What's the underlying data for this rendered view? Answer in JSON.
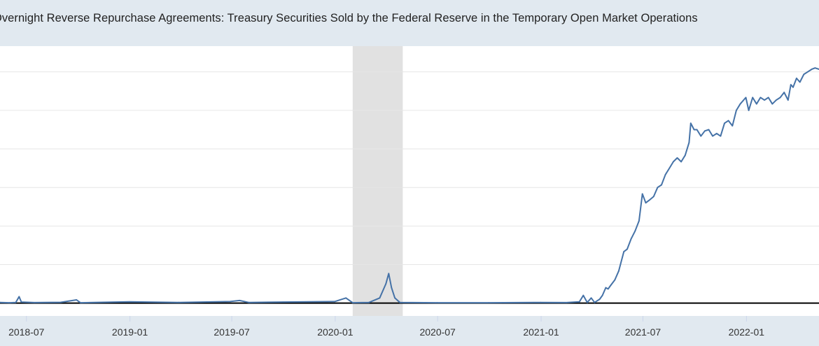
{
  "header": {
    "title": "Overnight Reverse Repurchase Agreements: Treasury Securities Sold by the Federal Reserve in the Temporary Open Market Operations"
  },
  "colors": {
    "series": "#4572a7",
    "recession": "#e1e1e1",
    "header_bg": "#e1e9f0",
    "grid": "#e6e6e6",
    "baseline": "#000000"
  },
  "chart_data": {
    "type": "line",
    "title": "Overnight Reverse Repurchase Agreements: Treasury Securities Sold by the Federal Reserve in the Temporary Open Market Operations",
    "xlabel": "",
    "ylabel": "",
    "grid": true,
    "legend": "none",
    "x_ticks": [
      "2018-07",
      "2019-01",
      "2019-07",
      "2020-01",
      "2020-07",
      "2021-01",
      "2021-07",
      "2022-01"
    ],
    "xlim": [
      "2018-05-15",
      "2022-05-10"
    ],
    "ylim": [
      -100,
      2000
    ],
    "recession_shading": [
      {
        "start": "2020-02-01",
        "end": "2020-04-30"
      }
    ],
    "series": [
      {
        "values": [
          [
            "2018-05-15",
            5
          ],
          [
            "2018-06-01",
            3
          ],
          [
            "2018-06-12",
            5
          ],
          [
            "2018-06-18",
            50
          ],
          [
            "2018-06-22",
            8
          ],
          [
            "2018-07-15",
            4
          ],
          [
            "2018-08-31",
            6
          ],
          [
            "2018-09-28",
            25
          ],
          [
            "2018-10-05",
            3
          ],
          [
            "2018-12-31",
            10
          ],
          [
            "2019-03-29",
            5
          ],
          [
            "2019-06-28",
            12
          ],
          [
            "2019-07-15",
            20
          ],
          [
            "2019-07-31",
            5
          ],
          [
            "2019-09-30",
            8
          ],
          [
            "2019-12-31",
            12
          ],
          [
            "2020-01-20",
            40
          ],
          [
            "2020-02-01",
            3
          ],
          [
            "2020-03-01",
            5
          ],
          [
            "2020-03-20",
            40
          ],
          [
            "2020-03-31",
            150
          ],
          [
            "2020-04-05",
            230
          ],
          [
            "2020-04-10",
            120
          ],
          [
            "2020-04-16",
            40
          ],
          [
            "2020-04-25",
            5
          ],
          [
            "2020-06-30",
            3
          ],
          [
            "2020-09-30",
            3
          ],
          [
            "2020-12-31",
            5
          ],
          [
            "2021-02-15",
            4
          ],
          [
            "2021-03-10",
            10
          ],
          [
            "2021-03-17",
            60
          ],
          [
            "2021-03-24",
            5
          ],
          [
            "2021-03-31",
            40
          ],
          [
            "2021-04-06",
            5
          ],
          [
            "2021-04-15",
            30
          ],
          [
            "2021-04-20",
            60
          ],
          [
            "2021-04-26",
            120
          ],
          [
            "2021-04-30",
            110
          ],
          [
            "2021-05-05",
            140
          ],
          [
            "2021-05-12",
            180
          ],
          [
            "2021-05-19",
            250
          ],
          [
            "2021-05-28",
            400
          ],
          [
            "2021-06-03",
            420
          ],
          [
            "2021-06-10",
            500
          ],
          [
            "2021-06-17",
            560
          ],
          [
            "2021-06-24",
            640
          ],
          [
            "2021-06-30",
            850
          ],
          [
            "2021-07-06",
            780
          ],
          [
            "2021-07-12",
            800
          ],
          [
            "2021-07-20",
            830
          ],
          [
            "2021-07-27",
            900
          ],
          [
            "2021-08-03",
            920
          ],
          [
            "2021-08-10",
            1000
          ],
          [
            "2021-08-17",
            1050
          ],
          [
            "2021-08-24",
            1100
          ],
          [
            "2021-08-31",
            1130
          ],
          [
            "2021-09-07",
            1100
          ],
          [
            "2021-09-14",
            1150
          ],
          [
            "2021-09-21",
            1250
          ],
          [
            "2021-09-24",
            1400
          ],
          [
            "2021-09-30",
            1350
          ],
          [
            "2021-10-05",
            1350
          ],
          [
            "2021-10-12",
            1300
          ],
          [
            "2021-10-19",
            1340
          ],
          [
            "2021-10-26",
            1350
          ],
          [
            "2021-11-02",
            1300
          ],
          [
            "2021-11-09",
            1320
          ],
          [
            "2021-11-16",
            1300
          ],
          [
            "2021-11-23",
            1400
          ],
          [
            "2021-11-30",
            1420
          ],
          [
            "2021-12-07",
            1380
          ],
          [
            "2021-12-14",
            1500
          ],
          [
            "2021-12-21",
            1550
          ],
          [
            "2021-12-31",
            1600
          ],
          [
            "2022-01-05",
            1500
          ],
          [
            "2022-01-12",
            1600
          ],
          [
            "2022-01-19",
            1550
          ],
          [
            "2022-01-26",
            1600
          ],
          [
            "2022-02-02",
            1580
          ],
          [
            "2022-02-09",
            1600
          ],
          [
            "2022-02-16",
            1550
          ],
          [
            "2022-02-23",
            1580
          ],
          [
            "2022-03-02",
            1600
          ],
          [
            "2022-03-09",
            1640
          ],
          [
            "2022-03-16",
            1580
          ],
          [
            "2022-03-21",
            1700
          ],
          [
            "2022-03-25",
            1680
          ],
          [
            "2022-03-31",
            1750
          ],
          [
            "2022-04-06",
            1720
          ],
          [
            "2022-04-13",
            1780
          ],
          [
            "2022-04-20",
            1800
          ],
          [
            "2022-04-27",
            1820
          ],
          [
            "2022-05-03",
            1830
          ],
          [
            "2022-05-10",
            1820
          ]
        ]
      }
    ]
  }
}
